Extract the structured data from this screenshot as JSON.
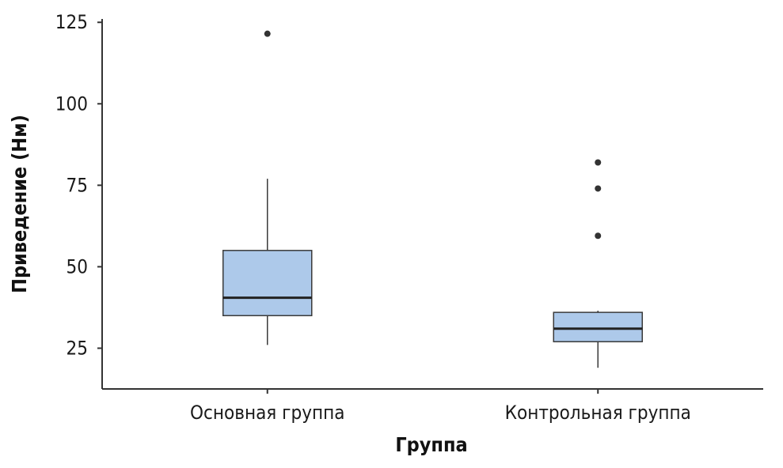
{
  "chart_data": {
    "type": "box",
    "title": "",
    "xlabel": "Группа",
    "ylabel": "Приведение (Нм)",
    "ylim": [
      12.5,
      127
    ],
    "yticks": [
      25,
      50,
      75,
      100,
      125
    ],
    "ytick_labels": [
      "25",
      "50",
      "75",
      "100",
      "125"
    ],
    "categories": [
      "Основная группа",
      "Контрольная группа"
    ],
    "boxes": [
      {
        "q1": 35,
        "median": 40.5,
        "q3": 55,
        "whisker_low": 26,
        "whisker_high": 77,
        "outliers": [
          121.5
        ]
      },
      {
        "q1": 27,
        "median": 31,
        "q3": 36,
        "whisker_low": 19,
        "whisker_high": 36.5,
        "outliers": [
          59.5,
          74,
          82
        ]
      }
    ],
    "grid": false,
    "legend": "none"
  },
  "colors": {
    "box_fill": "#adc9ea",
    "box_stroke": "#3a3a3a",
    "median": "#222222",
    "whisker": "#3a3a3a",
    "outlier": "#333333",
    "axis": "#333333"
  }
}
